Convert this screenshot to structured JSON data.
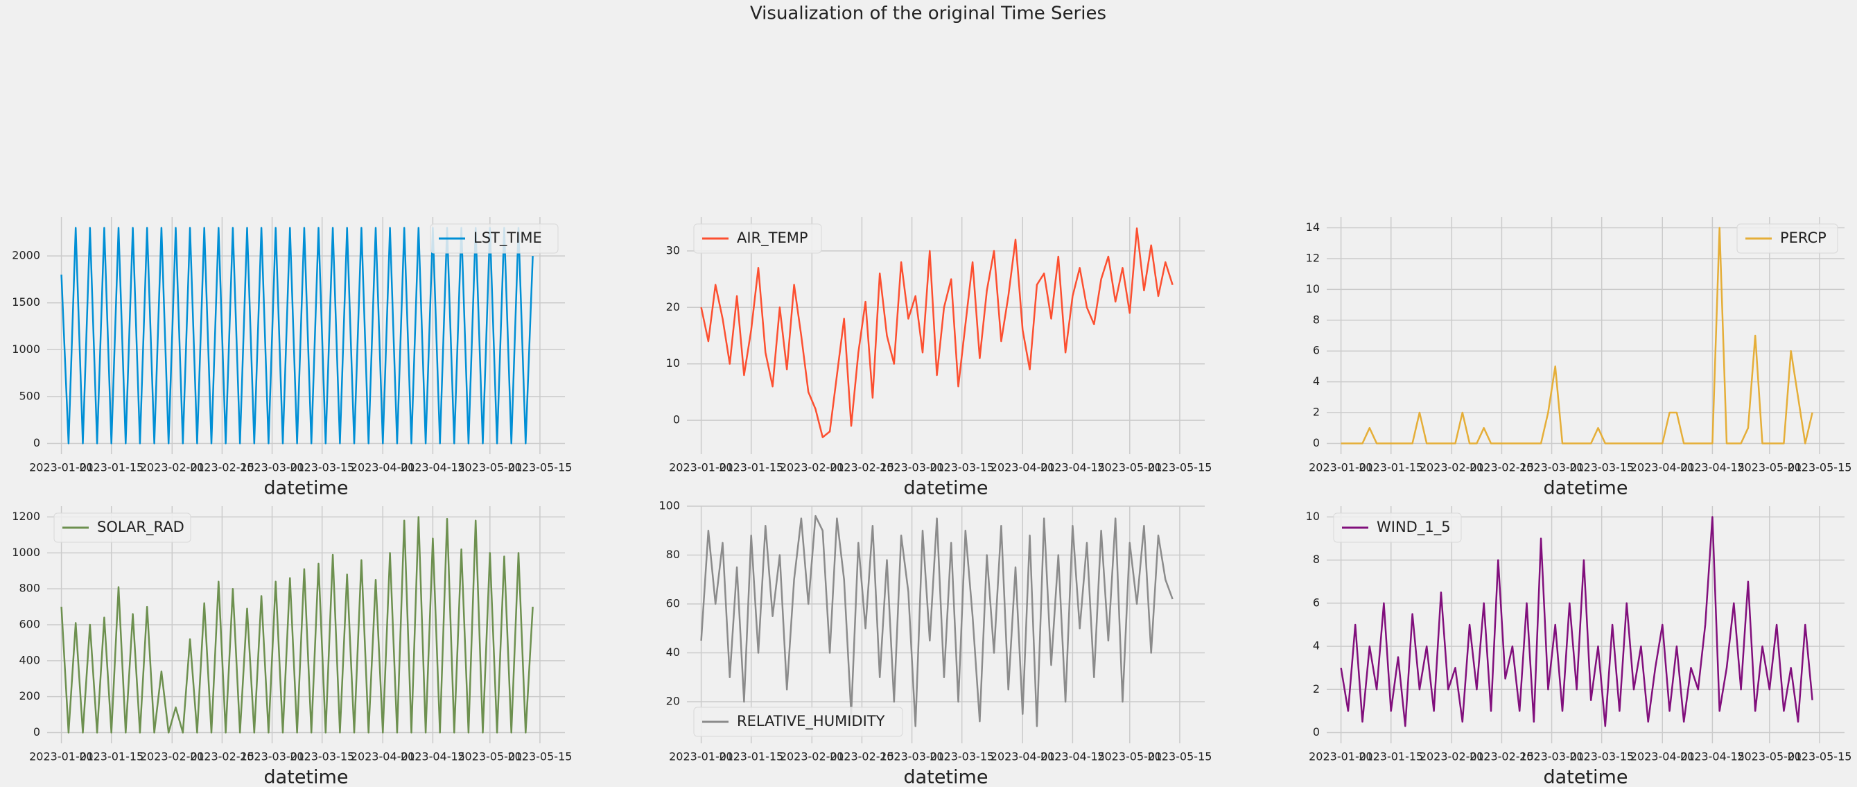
{
  "title": "Visualization of the original Time Series",
  "chart_data": [
    {
      "type": "line",
      "xlabel": "datetime",
      "legend": "upper right",
      "grid": true,
      "x": [
        "2023-01-01",
        "2023-01-03",
        "2023-01-05",
        "2023-01-07",
        "2023-01-09",
        "2023-01-11",
        "2023-01-13",
        "2023-01-15",
        "2023-01-17",
        "2023-01-19",
        "2023-01-21",
        "2023-01-23",
        "2023-01-25",
        "2023-01-27",
        "2023-01-29",
        "2023-01-31",
        "2023-02-02",
        "2023-02-04",
        "2023-02-06",
        "2023-02-08",
        "2023-02-10",
        "2023-02-12",
        "2023-02-14",
        "2023-02-16",
        "2023-02-18",
        "2023-02-20",
        "2023-02-22",
        "2023-02-24",
        "2023-02-26",
        "2023-02-28",
        "2023-03-02",
        "2023-03-04",
        "2023-03-06",
        "2023-03-08",
        "2023-03-10",
        "2023-03-12",
        "2023-03-14",
        "2023-03-16",
        "2023-03-18",
        "2023-03-20",
        "2023-03-22",
        "2023-03-24",
        "2023-03-26",
        "2023-03-28",
        "2023-03-30",
        "2023-04-01",
        "2023-04-03",
        "2023-04-05",
        "2023-04-07",
        "2023-04-09",
        "2023-04-11",
        "2023-04-13",
        "2023-04-15",
        "2023-04-17",
        "2023-04-19",
        "2023-04-21",
        "2023-04-23",
        "2023-04-25",
        "2023-04-27",
        "2023-04-29",
        "2023-05-01",
        "2023-05-03",
        "2023-05-05",
        "2023-05-07",
        "2023-05-09",
        "2023-05-11",
        "2023-05-13"
      ],
      "series": [
        {
          "name": "LST_TIME",
          "color": "#008fd5",
          "values": [
            1800,
            0,
            2300,
            0,
            2300,
            0,
            2300,
            0,
            2300,
            0,
            2300,
            0,
            2300,
            0,
            2300,
            0,
            2300,
            0,
            2300,
            0,
            2300,
            0,
            2300,
            0,
            2300,
            0,
            2300,
            0,
            2300,
            0,
            2300,
            0,
            2300,
            0,
            2300,
            0,
            2300,
            0,
            2300,
            0,
            2300,
            0,
            2300,
            0,
            2300,
            0,
            2300,
            0,
            2300,
            0,
            2300,
            0,
            2300,
            0,
            2300,
            0,
            2300,
            0,
            2300,
            0,
            2300,
            0,
            2300,
            0,
            2300,
            0,
            2000
          ]
        }
      ],
      "xlim": [
        "2022-12-28",
        "2023-05-22"
      ],
      "xticks": [
        "2023-01-01",
        "2023-01-15",
        "2023-02-01",
        "2023-02-15",
        "2023-03-01",
        "2023-03-15",
        "2023-04-01",
        "2023-04-15",
        "2023-05-01",
        "2023-05-15"
      ],
      "ylim": [
        -115,
        2415
      ],
      "yticks": [
        0,
        500,
        1000,
        1500,
        2000
      ]
    },
    {
      "type": "line",
      "xlabel": "datetime",
      "legend": "upper left",
      "grid": true,
      "x": [
        "2023-01-01",
        "2023-01-03",
        "2023-01-05",
        "2023-01-07",
        "2023-01-09",
        "2023-01-11",
        "2023-01-13",
        "2023-01-15",
        "2023-01-17",
        "2023-01-19",
        "2023-01-21",
        "2023-01-23",
        "2023-01-25",
        "2023-01-27",
        "2023-01-29",
        "2023-01-31",
        "2023-02-02",
        "2023-02-04",
        "2023-02-06",
        "2023-02-08",
        "2023-02-10",
        "2023-02-12",
        "2023-02-14",
        "2023-02-16",
        "2023-02-18",
        "2023-02-20",
        "2023-02-22",
        "2023-02-24",
        "2023-02-26",
        "2023-02-28",
        "2023-03-02",
        "2023-03-04",
        "2023-03-06",
        "2023-03-08",
        "2023-03-10",
        "2023-03-12",
        "2023-03-14",
        "2023-03-16",
        "2023-03-18",
        "2023-03-20",
        "2023-03-22",
        "2023-03-24",
        "2023-03-26",
        "2023-03-28",
        "2023-03-30",
        "2023-04-01",
        "2023-04-03",
        "2023-04-05",
        "2023-04-07",
        "2023-04-09",
        "2023-04-11",
        "2023-04-13",
        "2023-04-15",
        "2023-04-17",
        "2023-04-19",
        "2023-04-21",
        "2023-04-23",
        "2023-04-25",
        "2023-04-27",
        "2023-04-29",
        "2023-05-01",
        "2023-05-03",
        "2023-05-05",
        "2023-05-07",
        "2023-05-09",
        "2023-05-11",
        "2023-05-13"
      ],
      "series": [
        {
          "name": "AIR_TEMP",
          "color": "#fc4f30",
          "values": [
            20,
            14,
            24,
            18,
            10,
            22,
            8,
            16,
            27,
            12,
            6,
            20,
            9,
            24,
            15,
            5,
            2,
            -3,
            -2,
            8,
            18,
            -1,
            12,
            21,
            4,
            26,
            15,
            10,
            28,
            18,
            22,
            12,
            30,
            8,
            20,
            25,
            6,
            17,
            28,
            11,
            23,
            30,
            14,
            22,
            32,
            16,
            9,
            24,
            26,
            18,
            29,
            12,
            22,
            27,
            20,
            17,
            25,
            29,
            21,
            27,
            19,
            34,
            23,
            31,
            22,
            28,
            24
          ]
        }
      ],
      "xlim": [
        "2022-12-28",
        "2023-05-22"
      ],
      "xticks": [
        "2023-01-01",
        "2023-01-15",
        "2023-02-01",
        "2023-02-15",
        "2023-03-01",
        "2023-03-15",
        "2023-04-01",
        "2023-04-15",
        "2023-05-01",
        "2023-05-15"
      ],
      "ylim": [
        -6,
        36
      ],
      "yticks": [
        0,
        10,
        20,
        30
      ]
    },
    {
      "type": "line",
      "xlabel": "datetime",
      "legend": "upper right",
      "grid": true,
      "x": [
        "2023-01-01",
        "2023-01-03",
        "2023-01-05",
        "2023-01-07",
        "2023-01-09",
        "2023-01-11",
        "2023-01-13",
        "2023-01-15",
        "2023-01-17",
        "2023-01-19",
        "2023-01-21",
        "2023-01-23",
        "2023-01-25",
        "2023-01-27",
        "2023-01-29",
        "2023-01-31",
        "2023-02-02",
        "2023-02-04",
        "2023-02-06",
        "2023-02-08",
        "2023-02-10",
        "2023-02-12",
        "2023-02-14",
        "2023-02-16",
        "2023-02-18",
        "2023-02-20",
        "2023-02-22",
        "2023-02-24",
        "2023-02-26",
        "2023-02-28",
        "2023-03-02",
        "2023-03-04",
        "2023-03-06",
        "2023-03-08",
        "2023-03-10",
        "2023-03-12",
        "2023-03-14",
        "2023-03-16",
        "2023-03-18",
        "2023-03-20",
        "2023-03-22",
        "2023-03-24",
        "2023-03-26",
        "2023-03-28",
        "2023-03-30",
        "2023-04-01",
        "2023-04-03",
        "2023-04-05",
        "2023-04-07",
        "2023-04-09",
        "2023-04-11",
        "2023-04-13",
        "2023-04-15",
        "2023-04-17",
        "2023-04-19",
        "2023-04-21",
        "2023-04-23",
        "2023-04-25",
        "2023-04-27",
        "2023-04-29",
        "2023-05-01",
        "2023-05-03",
        "2023-05-05",
        "2023-05-07",
        "2023-05-09",
        "2023-05-11",
        "2023-05-13"
      ],
      "series": [
        {
          "name": "PERCP",
          "color": "#e5ae38",
          "values": [
            0,
            0,
            0,
            0,
            1,
            0,
            0,
            0,
            0,
            0,
            0,
            2,
            0,
            0,
            0,
            0,
            0,
            2,
            0,
            0,
            1,
            0,
            0,
            0,
            0,
            0,
            0,
            0,
            0,
            2,
            5,
            0,
            0,
            0,
            0,
            0,
            1,
            0,
            0,
            0,
            0,
            0,
            0,
            0,
            0,
            0,
            2,
            2,
            0,
            0,
            0,
            0,
            0,
            14,
            0,
            0,
            0,
            1,
            7,
            0,
            0,
            0,
            0,
            6,
            3,
            0,
            2
          ]
        }
      ],
      "xlim": [
        "2022-12-28",
        "2023-05-22"
      ],
      "xticks": [
        "2023-01-01",
        "2023-01-15",
        "2023-02-01",
        "2023-02-15",
        "2023-03-01",
        "2023-03-15",
        "2023-04-01",
        "2023-04-15",
        "2023-05-01",
        "2023-05-15"
      ],
      "ylim": [
        -0.7,
        14.7
      ],
      "yticks": [
        0,
        2,
        4,
        6,
        8,
        10,
        12,
        14
      ]
    },
    {
      "type": "line",
      "xlabel": "datetime",
      "legend": "upper left",
      "grid": true,
      "x": [
        "2023-01-01",
        "2023-01-03",
        "2023-01-05",
        "2023-01-07",
        "2023-01-09",
        "2023-01-11",
        "2023-01-13",
        "2023-01-15",
        "2023-01-17",
        "2023-01-19",
        "2023-01-21",
        "2023-01-23",
        "2023-01-25",
        "2023-01-27",
        "2023-01-29",
        "2023-01-31",
        "2023-02-02",
        "2023-02-04",
        "2023-02-06",
        "2023-02-08",
        "2023-02-10",
        "2023-02-12",
        "2023-02-14",
        "2023-02-16",
        "2023-02-18",
        "2023-02-20",
        "2023-02-22",
        "2023-02-24",
        "2023-02-26",
        "2023-02-28",
        "2023-03-02",
        "2023-03-04",
        "2023-03-06",
        "2023-03-08",
        "2023-03-10",
        "2023-03-12",
        "2023-03-14",
        "2023-03-16",
        "2023-03-18",
        "2023-03-20",
        "2023-03-22",
        "2023-03-24",
        "2023-03-26",
        "2023-03-28",
        "2023-03-30",
        "2023-04-01",
        "2023-04-03",
        "2023-04-05",
        "2023-04-07",
        "2023-04-09",
        "2023-04-11",
        "2023-04-13",
        "2023-04-15",
        "2023-04-17",
        "2023-04-19",
        "2023-04-21",
        "2023-04-23",
        "2023-04-25",
        "2023-04-27",
        "2023-04-29",
        "2023-05-01",
        "2023-05-03",
        "2023-05-05",
        "2023-05-07",
        "2023-05-09",
        "2023-05-11",
        "2023-05-13"
      ],
      "series": [
        {
          "name": "SOLAR_RAD",
          "color": "#6d904f",
          "values": [
            700,
            0,
            610,
            0,
            600,
            0,
            640,
            0,
            810,
            0,
            660,
            0,
            700,
            0,
            340,
            0,
            140,
            0,
            520,
            0,
            720,
            0,
            840,
            0,
            800,
            0,
            690,
            0,
            760,
            0,
            840,
            0,
            860,
            0,
            910,
            0,
            940,
            0,
            990,
            0,
            880,
            0,
            960,
            0,
            850,
            0,
            1000,
            0,
            1180,
            0,
            1200,
            0,
            1080,
            0,
            1190,
            0,
            1020,
            0,
            1180,
            0,
            1000,
            0,
            980,
            0,
            1000,
            0,
            700
          ]
        }
      ],
      "xlim": [
        "2022-12-28",
        "2023-05-22"
      ],
      "xticks": [
        "2023-01-01",
        "2023-01-15",
        "2023-02-01",
        "2023-02-15",
        "2023-03-01",
        "2023-03-15",
        "2023-04-01",
        "2023-04-15",
        "2023-05-01",
        "2023-05-15"
      ],
      "ylim": [
        -60,
        1260
      ],
      "yticks": [
        0,
        200,
        400,
        600,
        800,
        1000,
        1200
      ]
    },
    {
      "type": "line",
      "xlabel": "datetime",
      "legend": "lower left",
      "grid": true,
      "x": [
        "2023-01-01",
        "2023-01-03",
        "2023-01-05",
        "2023-01-07",
        "2023-01-09",
        "2023-01-11",
        "2023-01-13",
        "2023-01-15",
        "2023-01-17",
        "2023-01-19",
        "2023-01-21",
        "2023-01-23",
        "2023-01-25",
        "2023-01-27",
        "2023-01-29",
        "2023-01-31",
        "2023-02-02",
        "2023-02-04",
        "2023-02-06",
        "2023-02-08",
        "2023-02-10",
        "2023-02-12",
        "2023-02-14",
        "2023-02-16",
        "2023-02-18",
        "2023-02-20",
        "2023-02-22",
        "2023-02-24",
        "2023-02-26",
        "2023-02-28",
        "2023-03-02",
        "2023-03-04",
        "2023-03-06",
        "2023-03-08",
        "2023-03-10",
        "2023-03-12",
        "2023-03-14",
        "2023-03-16",
        "2023-03-18",
        "2023-03-20",
        "2023-03-22",
        "2023-03-24",
        "2023-03-26",
        "2023-03-28",
        "2023-03-30",
        "2023-04-01",
        "2023-04-03",
        "2023-04-05",
        "2023-04-07",
        "2023-04-09",
        "2023-04-11",
        "2023-04-13",
        "2023-04-15",
        "2023-04-17",
        "2023-04-19",
        "2023-04-21",
        "2023-04-23",
        "2023-04-25",
        "2023-04-27",
        "2023-04-29",
        "2023-05-01",
        "2023-05-03",
        "2023-05-05",
        "2023-05-07",
        "2023-05-09",
        "2023-05-11",
        "2023-05-13"
      ],
      "series": [
        {
          "name": "RELATIVE_HUMIDITY",
          "color": "#8b8b8b",
          "values": [
            45,
            90,
            60,
            85,
            30,
            75,
            20,
            88,
            40,
            92,
            55,
            80,
            25,
            70,
            95,
            60,
            96,
            90,
            40,
            95,
            70,
            15,
            85,
            50,
            92,
            30,
            78,
            20,
            88,
            65,
            10,
            90,
            45,
            95,
            30,
            85,
            20,
            90,
            55,
            12,
            80,
            40,
            92,
            25,
            75,
            15,
            88,
            10,
            95,
            35,
            80,
            20,
            92,
            50,
            85,
            30,
            90,
            45,
            95,
            20,
            85,
            60,
            92,
            40,
            88,
            70,
            62
          ]
        }
      ],
      "xlim": [
        "2022-12-28",
        "2023-05-22"
      ],
      "xticks": [
        "2023-01-01",
        "2023-01-15",
        "2023-02-01",
        "2023-02-15",
        "2023-03-01",
        "2023-03-15",
        "2023-04-01",
        "2023-04-15",
        "2023-05-01",
        "2023-05-15"
      ],
      "ylim": [
        3,
        100
      ],
      "yticks": [
        20,
        40,
        60,
        80,
        100
      ]
    },
    {
      "type": "line",
      "xlabel": "datetime",
      "legend": "upper left",
      "grid": true,
      "x": [
        "2023-01-01",
        "2023-01-03",
        "2023-01-05",
        "2023-01-07",
        "2023-01-09",
        "2023-01-11",
        "2023-01-13",
        "2023-01-15",
        "2023-01-17",
        "2023-01-19",
        "2023-01-21",
        "2023-01-23",
        "2023-01-25",
        "2023-01-27",
        "2023-01-29",
        "2023-01-31",
        "2023-02-02",
        "2023-02-04",
        "2023-02-06",
        "2023-02-08",
        "2023-02-10",
        "2023-02-12",
        "2023-02-14",
        "2023-02-16",
        "2023-02-18",
        "2023-02-20",
        "2023-02-22",
        "2023-02-24",
        "2023-02-26",
        "2023-02-28",
        "2023-03-02",
        "2023-03-04",
        "2023-03-06",
        "2023-03-08",
        "2023-03-10",
        "2023-03-12",
        "2023-03-14",
        "2023-03-16",
        "2023-03-18",
        "2023-03-20",
        "2023-03-22",
        "2023-03-24",
        "2023-03-26",
        "2023-03-28",
        "2023-03-30",
        "2023-04-01",
        "2023-04-03",
        "2023-04-05",
        "2023-04-07",
        "2023-04-09",
        "2023-04-11",
        "2023-04-13",
        "2023-04-15",
        "2023-04-17",
        "2023-04-19",
        "2023-04-21",
        "2023-04-23",
        "2023-04-25",
        "2023-04-27",
        "2023-04-29",
        "2023-05-01",
        "2023-05-03",
        "2023-05-05",
        "2023-05-07",
        "2023-05-09",
        "2023-05-11",
        "2023-05-13"
      ],
      "series": [
        {
          "name": "WIND_1_5",
          "color": "#810f7c",
          "values": [
            3,
            1,
            5,
            0.5,
            4,
            2,
            6,
            1,
            3.5,
            0.3,
            5.5,
            2,
            4,
            1,
            6.5,
            2,
            3,
            0.5,
            5,
            2,
            6,
            1,
            8,
            2.5,
            4,
            1,
            6,
            0.5,
            9,
            2,
            5,
            1,
            6,
            2,
            8,
            1.5,
            4,
            0.3,
            5,
            1,
            6,
            2,
            4,
            0.5,
            3,
            5,
            1,
            4,
            0.5,
            3,
            2,
            5,
            10,
            1,
            3,
            6,
            2,
            7,
            1,
            4,
            2,
            5,
            1,
            3,
            0.5,
            5,
            1.5
          ]
        }
      ],
      "xlim": [
        "2022-12-28",
        "2023-05-22"
      ],
      "xticks": [
        "2023-01-01",
        "2023-01-15",
        "2023-02-01",
        "2023-02-15",
        "2023-03-01",
        "2023-03-15",
        "2023-04-01",
        "2023-04-15",
        "2023-05-01",
        "2023-05-15"
      ],
      "ylim": [
        -0.5,
        10.5
      ],
      "yticks": [
        0,
        2,
        4,
        6,
        8,
        10
      ]
    }
  ]
}
